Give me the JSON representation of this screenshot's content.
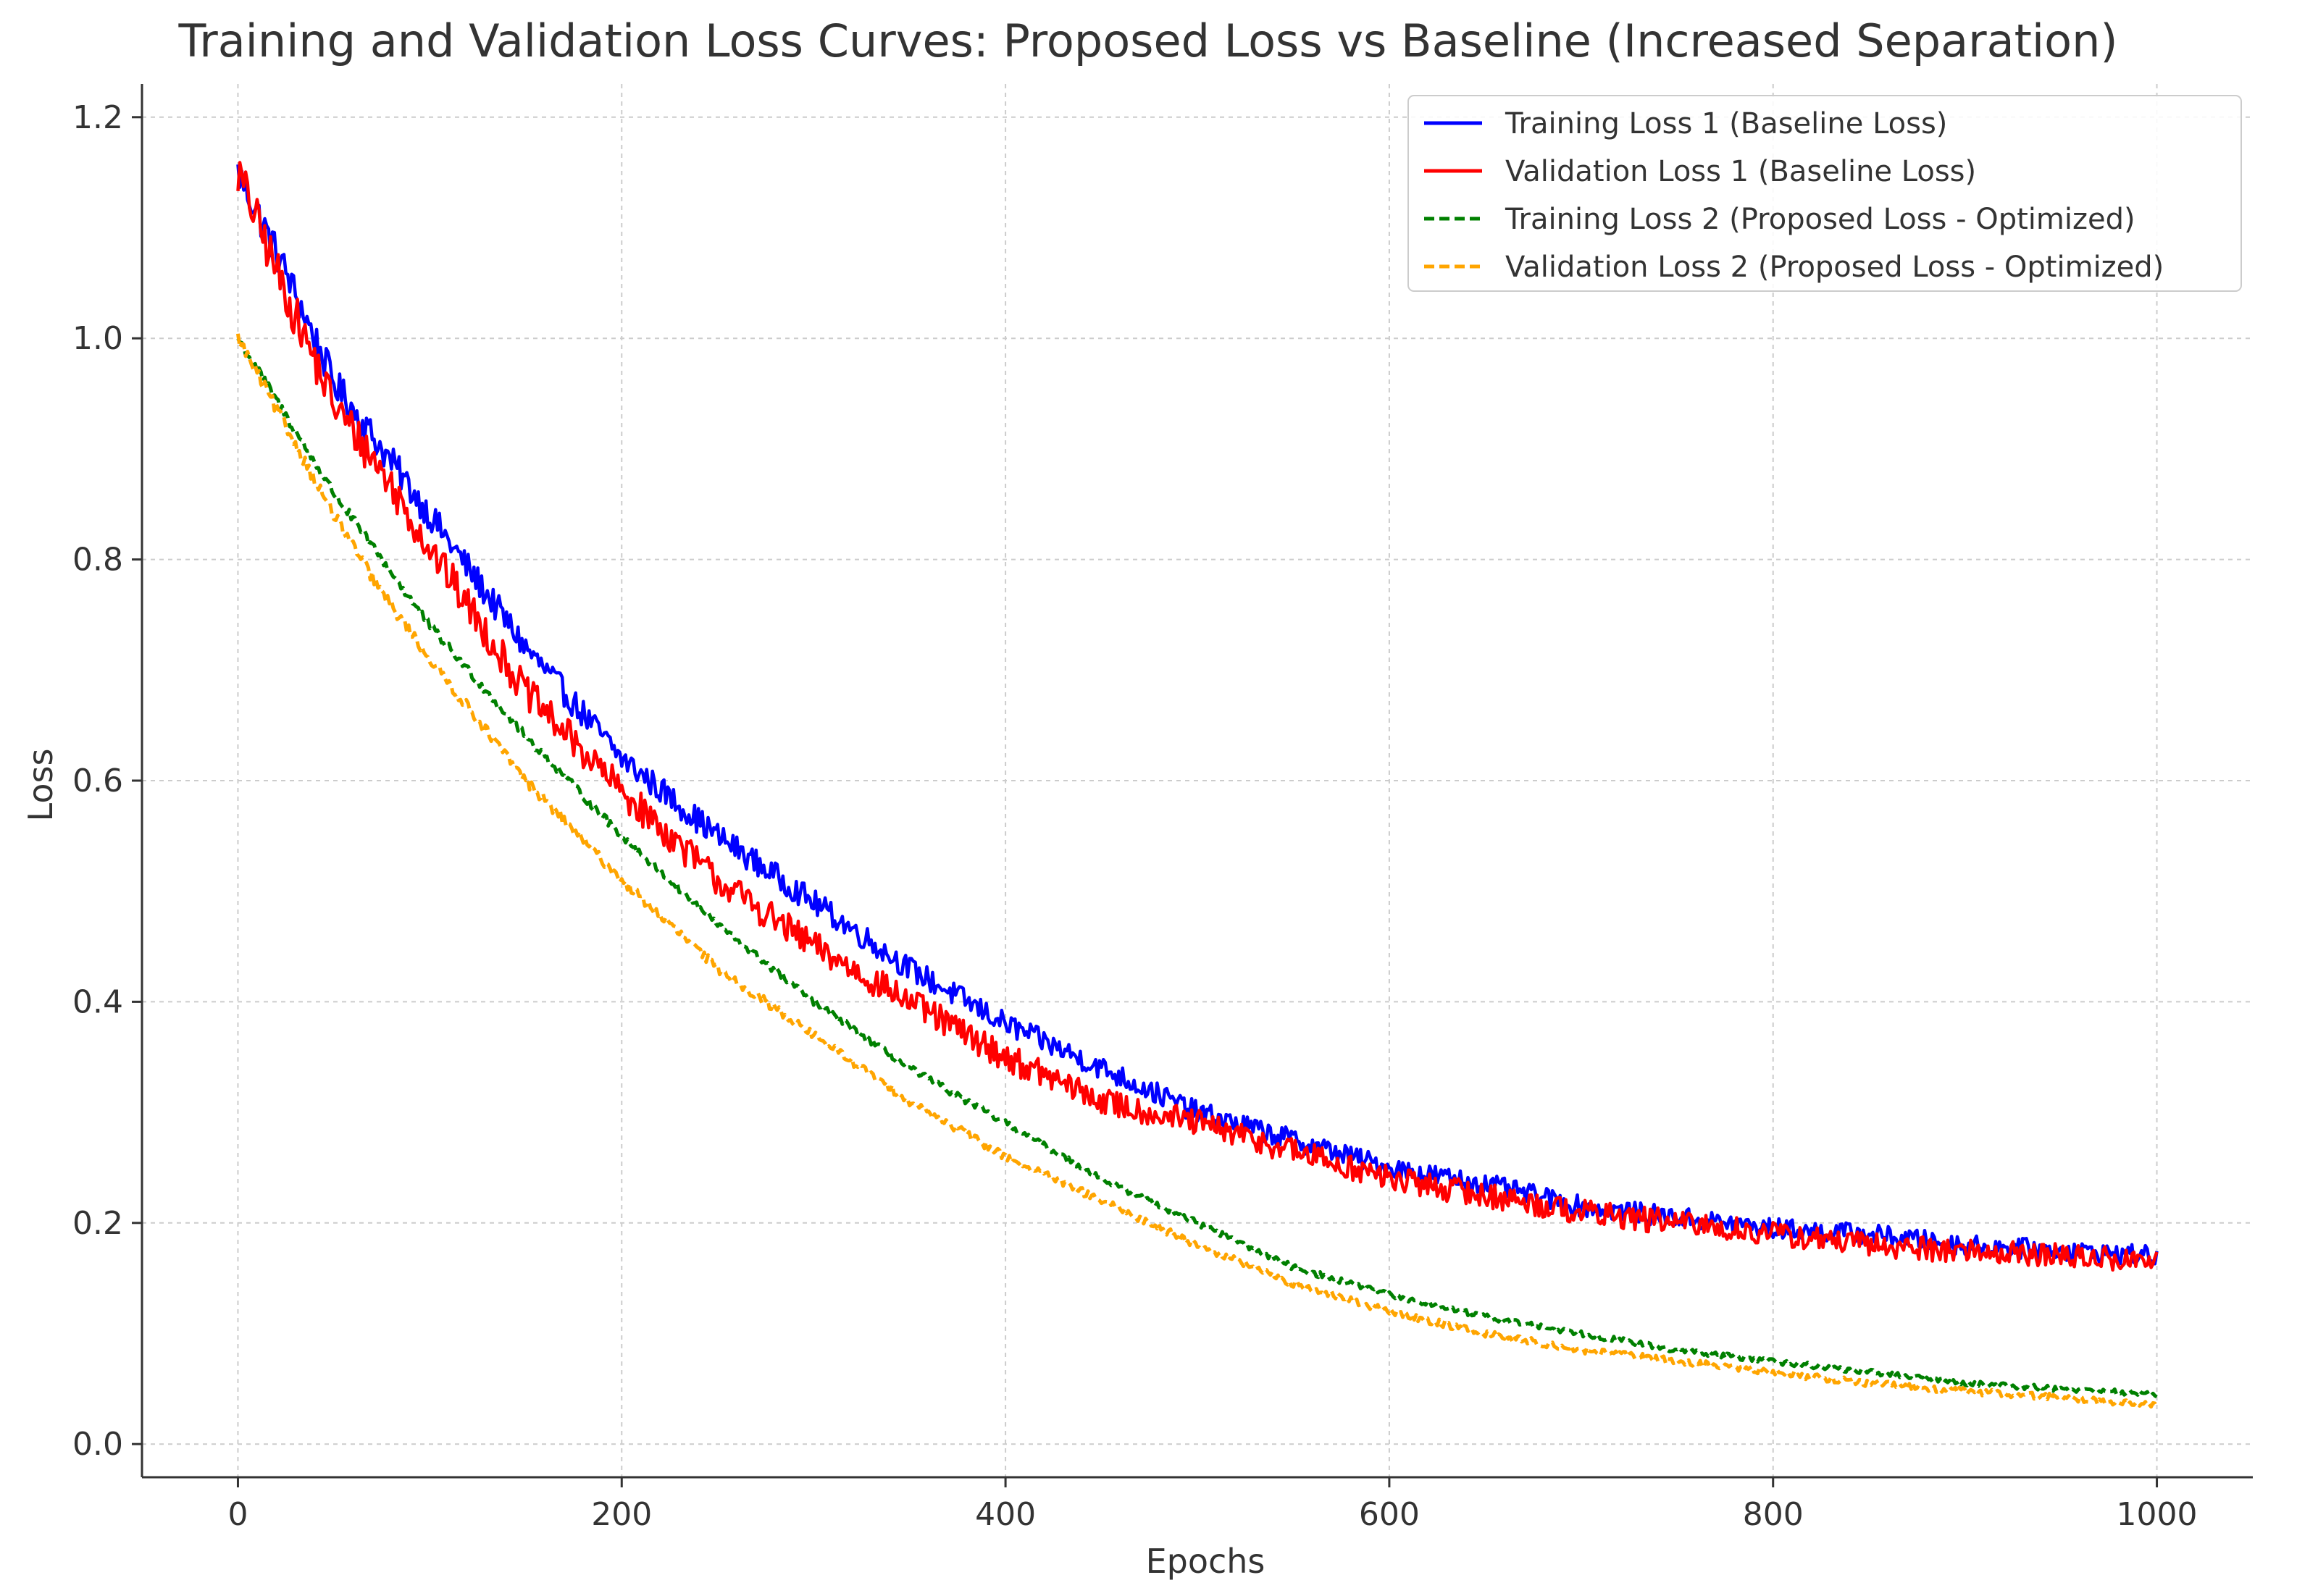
{
  "chart_data": {
    "type": "line",
    "title": "Training and Validation Loss Curves: Proposed Loss vs Baseline (Increased Separation)",
    "xlabel": "Epochs",
    "ylabel": "Loss",
    "xlim": [
      -50,
      1050
    ],
    "ylim": [
      -0.03,
      1.23
    ],
    "xticks": [
      0,
      200,
      400,
      600,
      800,
      1000
    ],
    "xtick_labels": [
      "0",
      "200",
      "400",
      "600",
      "800",
      "1000"
    ],
    "yticks": [
      0.0,
      0.2,
      0.4,
      0.6,
      0.8,
      1.0,
      1.2
    ],
    "ytick_labels": [
      "0.0",
      "0.2",
      "0.4",
      "0.6",
      "0.8",
      "1.0",
      "1.2"
    ],
    "grid": true,
    "legend_position": "top-right",
    "x": [
      0,
      25,
      50,
      75,
      100,
      150,
      200,
      250,
      300,
      350,
      400,
      450,
      500,
      550,
      600,
      650,
      700,
      750,
      800,
      850,
      900,
      950,
      1000
    ],
    "series": [
      {
        "name": "Training Loss 1 (Baseline Loss)",
        "color": "#0000ff",
        "style": "solid",
        "values": [
          1.15,
          1.06,
          0.96,
          0.9,
          0.84,
          0.72,
          0.62,
          0.55,
          0.49,
          0.43,
          0.38,
          0.34,
          0.3,
          0.275,
          0.25,
          0.235,
          0.215,
          0.205,
          0.195,
          0.19,
          0.18,
          0.175,
          0.17
        ]
      },
      {
        "name": "Validation Loss 1 (Baseline Loss)",
        "color": "#ff0000",
        "style": "solid",
        "values": [
          1.15,
          1.04,
          0.94,
          0.88,
          0.81,
          0.68,
          0.59,
          0.51,
          0.45,
          0.4,
          0.35,
          0.31,
          0.29,
          0.265,
          0.24,
          0.225,
          0.21,
          0.2,
          0.19,
          0.18,
          0.175,
          0.17,
          0.165
        ]
      },
      {
        "name": "Training Loss 2 (Proposed Loss - Optimized)",
        "color": "#008000",
        "style": "dashed",
        "values": [
          1.0,
          0.93,
          0.86,
          0.8,
          0.74,
          0.64,
          0.55,
          0.47,
          0.4,
          0.34,
          0.29,
          0.24,
          0.2,
          0.16,
          0.135,
          0.115,
          0.1,
          0.085,
          0.075,
          0.065,
          0.055,
          0.05,
          0.045
        ]
      },
      {
        "name": "Validation Loss 2 (Proposed Loss - Optimized)",
        "color": "#ffa500",
        "style": "dashed",
        "values": [
          1.0,
          0.92,
          0.84,
          0.77,
          0.71,
          0.6,
          0.51,
          0.43,
          0.37,
          0.31,
          0.26,
          0.22,
          0.18,
          0.145,
          0.12,
          0.1,
          0.085,
          0.075,
          0.065,
          0.055,
          0.048,
          0.042,
          0.035
        ]
      }
    ]
  }
}
